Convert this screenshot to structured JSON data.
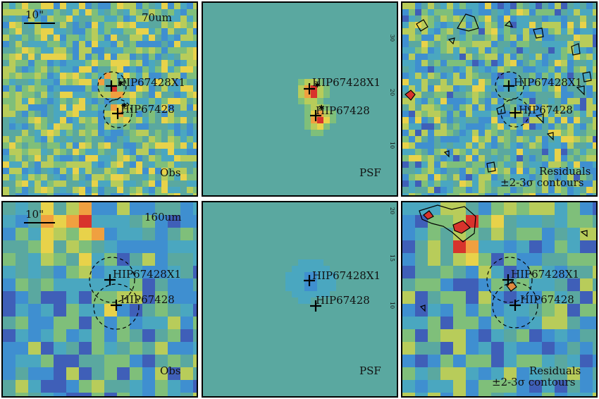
{
  "rows": [
    {
      "wavelength": "70um",
      "scale": "10\"",
      "panels": [
        {
          "kind": "obs",
          "label": "Obs"
        },
        {
          "kind": "psf",
          "label": "PSF"
        },
        {
          "kind": "res",
          "label_1": "Residuals",
          "label_2": "±2-3σ contours"
        }
      ]
    },
    {
      "wavelength": "160um",
      "scale": "10\"",
      "panels": [
        {
          "kind": "obs",
          "label": "Obs"
        },
        {
          "kind": "psf",
          "label": "PSF"
        },
        {
          "kind": "res",
          "label_1": "Residuals",
          "label_2": "±2-3σ contours"
        }
      ]
    }
  ],
  "sources": [
    "HIP67428X1",
    "HIP67428"
  ],
  "psf_ticks_row1": [
    "30",
    "20",
    "10"
  ],
  "psf_ticks_row2": [
    "20",
    "15",
    "10"
  ],
  "colors": {
    "background": "#5aa8a0",
    "low": "#3b1f7a",
    "mid": "#3f8fd0",
    "high": "#e8d24a",
    "peak": "#d8332c"
  }
}
